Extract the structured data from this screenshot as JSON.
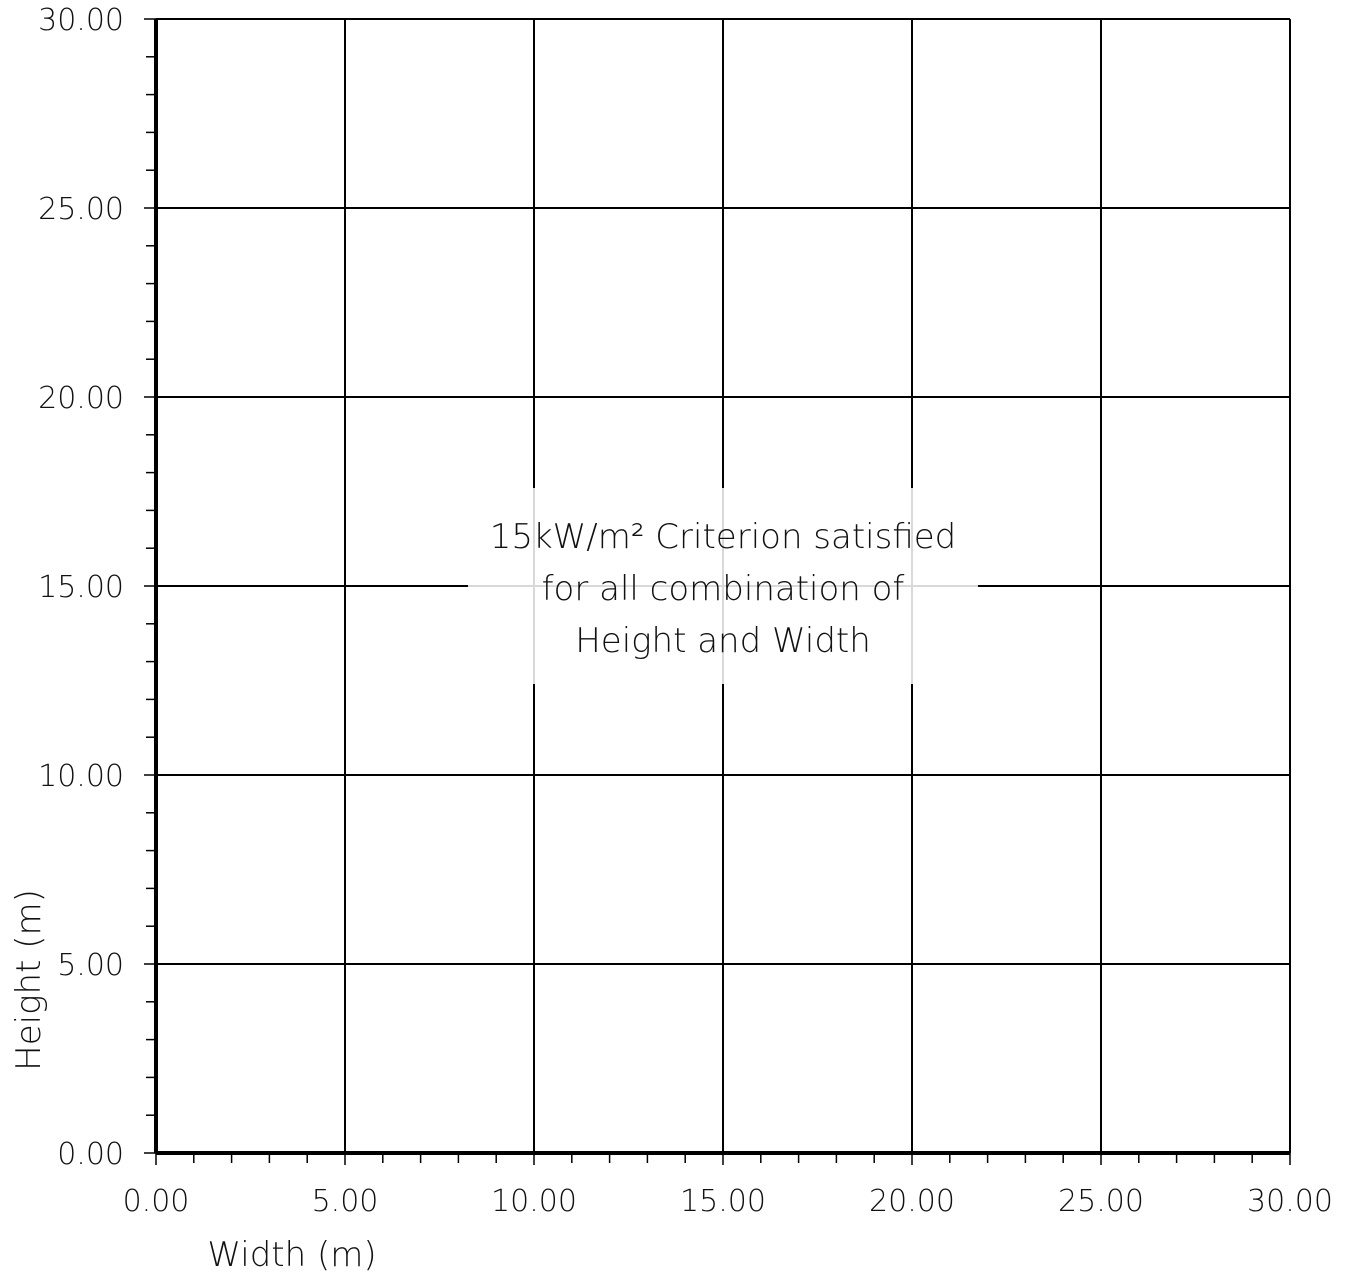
{
  "chart_data": {
    "type": "scatter",
    "title": "",
    "xlabel": "Width (m)",
    "ylabel": "Height (m)",
    "xlim": [
      0,
      30
    ],
    "ylim": [
      0,
      30
    ],
    "x_ticks": [
      "0.00",
      "5.00",
      "10.00",
      "15.00",
      "20.00",
      "25.00",
      "30.00"
    ],
    "y_ticks": [
      "0.00",
      "5.00",
      "10.00",
      "15.00",
      "20.00",
      "25.00",
      "30.00"
    ],
    "major_step": 5,
    "minor_step": 1,
    "grid": true,
    "series": [],
    "annotation": {
      "lines": [
        "15kW/m² Criterion satisfied",
        "for all combination of",
        "Height and Width"
      ],
      "x": 15,
      "y": 15
    }
  }
}
